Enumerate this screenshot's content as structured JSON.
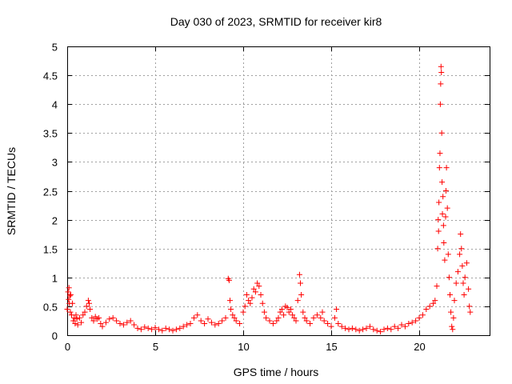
{
  "chart_data": {
    "type": "scatter",
    "title": "Day 030 of 2023, SRMTID for receiver kir8",
    "xlabel": "GPS time / hours",
    "ylabel": "SRMTID / TECUs",
    "xlim": [
      0,
      24
    ],
    "ylim": [
      0,
      5
    ],
    "xticks": [
      0,
      5,
      10,
      15,
      20
    ],
    "yticks": [
      0,
      0.5,
      1,
      1.5,
      2,
      2.5,
      3,
      3.5,
      4,
      4.5,
      5
    ],
    "ytick_labels": [
      "0",
      "0.5",
      "1",
      "1.5",
      "2",
      "2.5",
      "3",
      "3.5",
      "4",
      "4.5",
      "5"
    ],
    "grid": true,
    "marker": "plus",
    "color": "#ff0000",
    "series": [
      {
        "points": [
          [
            0.0,
            0.45
          ],
          [
            0.05,
            0.75
          ],
          [
            0.08,
            0.62
          ],
          [
            0.1,
            0.82
          ],
          [
            0.12,
            0.55
          ],
          [
            0.15,
            0.68
          ],
          [
            0.18,
            0.4
          ],
          [
            0.2,
            0.7
          ],
          [
            0.25,
            0.35
          ],
          [
            0.3,
            0.55
          ],
          [
            0.35,
            0.25
          ],
          [
            0.4,
            0.3
          ],
          [
            0.45,
            0.2
          ],
          [
            0.5,
            0.35
          ],
          [
            0.55,
            0.28
          ],
          [
            0.6,
            0.18
          ],
          [
            0.7,
            0.3
          ],
          [
            0.8,
            0.22
          ],
          [
            0.9,
            0.35
          ],
          [
            1.0,
            0.4
          ],
          [
            1.1,
            0.5
          ],
          [
            1.2,
            0.6
          ],
          [
            1.25,
            0.55
          ],
          [
            1.3,
            0.45
          ],
          [
            1.4,
            0.3
          ],
          [
            1.5,
            0.25
          ],
          [
            1.6,
            0.32
          ],
          [
            1.7,
            0.28
          ],
          [
            1.8,
            0.3
          ],
          [
            1.9,
            0.2
          ],
          [
            2.0,
            0.15
          ],
          [
            2.2,
            0.22
          ],
          [
            2.4,
            0.28
          ],
          [
            2.6,
            0.3
          ],
          [
            2.8,
            0.25
          ],
          [
            3.0,
            0.2
          ],
          [
            3.2,
            0.18
          ],
          [
            3.4,
            0.22
          ],
          [
            3.6,
            0.25
          ],
          [
            3.8,
            0.18
          ],
          [
            4.0,
            0.12
          ],
          [
            4.2,
            0.1
          ],
          [
            4.4,
            0.14
          ],
          [
            4.6,
            0.12
          ],
          [
            4.8,
            0.1
          ],
          [
            5.0,
            0.13
          ],
          [
            5.2,
            0.1
          ],
          [
            5.4,
            0.08
          ],
          [
            5.6,
            0.12
          ],
          [
            5.8,
            0.1
          ],
          [
            6.0,
            0.08
          ],
          [
            6.2,
            0.1
          ],
          [
            6.4,
            0.12
          ],
          [
            6.6,
            0.15
          ],
          [
            6.8,
            0.18
          ],
          [
            7.0,
            0.2
          ],
          [
            7.2,
            0.3
          ],
          [
            7.4,
            0.35
          ],
          [
            7.6,
            0.25
          ],
          [
            7.8,
            0.2
          ],
          [
            8.0,
            0.28
          ],
          [
            8.2,
            0.22
          ],
          [
            8.4,
            0.18
          ],
          [
            8.6,
            0.2
          ],
          [
            8.8,
            0.25
          ],
          [
            9.0,
            0.3
          ],
          [
            9.15,
            0.98
          ],
          [
            9.2,
            0.95
          ],
          [
            9.25,
            0.6
          ],
          [
            9.3,
            0.45
          ],
          [
            9.4,
            0.35
          ],
          [
            9.5,
            0.3
          ],
          [
            9.6,
            0.25
          ],
          [
            9.8,
            0.2
          ],
          [
            10.0,
            0.4
          ],
          [
            10.1,
            0.5
          ],
          [
            10.2,
            0.7
          ],
          [
            10.3,
            0.6
          ],
          [
            10.4,
            0.55
          ],
          [
            10.5,
            0.65
          ],
          [
            10.6,
            0.8
          ],
          [
            10.7,
            0.75
          ],
          [
            10.8,
            0.9
          ],
          [
            10.9,
            0.85
          ],
          [
            11.0,
            0.7
          ],
          [
            11.1,
            0.55
          ],
          [
            11.2,
            0.4
          ],
          [
            11.3,
            0.3
          ],
          [
            11.5,
            0.25
          ],
          [
            11.7,
            0.2
          ],
          [
            11.9,
            0.25
          ],
          [
            12.0,
            0.3
          ],
          [
            12.1,
            0.4
          ],
          [
            12.2,
            0.45
          ],
          [
            12.3,
            0.35
          ],
          [
            12.4,
            0.5
          ],
          [
            12.5,
            0.48
          ],
          [
            12.6,
            0.4
          ],
          [
            12.7,
            0.45
          ],
          [
            12.8,
            0.35
          ],
          [
            12.9,
            0.3
          ],
          [
            13.0,
            0.25
          ],
          [
            13.1,
            0.6
          ],
          [
            13.2,
            1.05
          ],
          [
            13.25,
            0.9
          ],
          [
            13.3,
            0.7
          ],
          [
            13.4,
            0.4
          ],
          [
            13.5,
            0.3
          ],
          [
            13.6,
            0.25
          ],
          [
            13.8,
            0.2
          ],
          [
            14.0,
            0.3
          ],
          [
            14.2,
            0.35
          ],
          [
            14.4,
            0.3
          ],
          [
            14.5,
            0.4
          ],
          [
            14.6,
            0.25
          ],
          [
            14.8,
            0.2
          ],
          [
            15.0,
            0.15
          ],
          [
            15.2,
            0.3
          ],
          [
            15.3,
            0.45
          ],
          [
            15.4,
            0.2
          ],
          [
            15.6,
            0.15
          ],
          [
            15.8,
            0.12
          ],
          [
            16.0,
            0.1
          ],
          [
            16.2,
            0.12
          ],
          [
            16.4,
            0.1
          ],
          [
            16.6,
            0.08
          ],
          [
            16.8,
            0.1
          ],
          [
            17.0,
            0.12
          ],
          [
            17.2,
            0.15
          ],
          [
            17.4,
            0.1
          ],
          [
            17.6,
            0.08
          ],
          [
            17.8,
            0.06
          ],
          [
            18.0,
            0.1
          ],
          [
            18.2,
            0.12
          ],
          [
            18.4,
            0.1
          ],
          [
            18.6,
            0.15
          ],
          [
            18.8,
            0.12
          ],
          [
            19.0,
            0.18
          ],
          [
            19.2,
            0.15
          ],
          [
            19.4,
            0.2
          ],
          [
            19.6,
            0.22
          ],
          [
            19.8,
            0.25
          ],
          [
            20.0,
            0.3
          ],
          [
            20.2,
            0.35
          ],
          [
            20.4,
            0.45
          ],
          [
            20.6,
            0.5
          ],
          [
            20.8,
            0.55
          ],
          [
            20.9,
            0.6
          ],
          [
            21.0,
            0.85
          ],
          [
            21.05,
            1.5
          ],
          [
            21.08,
            2.0
          ],
          [
            21.1,
            1.8
          ],
          [
            21.12,
            2.3
          ],
          [
            21.15,
            2.9
          ],
          [
            21.18,
            3.15
          ],
          [
            21.2,
            4.0
          ],
          [
            21.22,
            4.35
          ],
          [
            21.24,
            4.65
          ],
          [
            21.26,
            4.55
          ],
          [
            21.28,
            3.5
          ],
          [
            21.3,
            2.65
          ],
          [
            21.32,
            2.1
          ],
          [
            21.35,
            2.4
          ],
          [
            21.38,
            1.9
          ],
          [
            21.4,
            1.6
          ],
          [
            21.45,
            1.3
          ],
          [
            21.5,
            2.05
          ],
          [
            21.52,
            2.5
          ],
          [
            21.55,
            2.9
          ],
          [
            21.6,
            2.2
          ],
          [
            21.65,
            1.4
          ],
          [
            21.7,
            1.0
          ],
          [
            21.75,
            0.7
          ],
          [
            21.8,
            0.4
          ],
          [
            21.85,
            0.15
          ],
          [
            21.9,
            0.1
          ],
          [
            21.95,
            0.3
          ],
          [
            22.0,
            0.6
          ],
          [
            22.1,
            0.9
          ],
          [
            22.2,
            1.1
          ],
          [
            22.3,
            1.4
          ],
          [
            22.35,
            1.75
          ],
          [
            22.4,
            1.5
          ],
          [
            22.45,
            1.2
          ],
          [
            22.5,
            0.9
          ],
          [
            22.55,
            0.7
          ],
          [
            22.6,
            1.0
          ],
          [
            22.7,
            1.25
          ],
          [
            22.8,
            0.8
          ],
          [
            22.85,
            0.5
          ],
          [
            22.9,
            0.4
          ]
        ]
      }
    ]
  }
}
